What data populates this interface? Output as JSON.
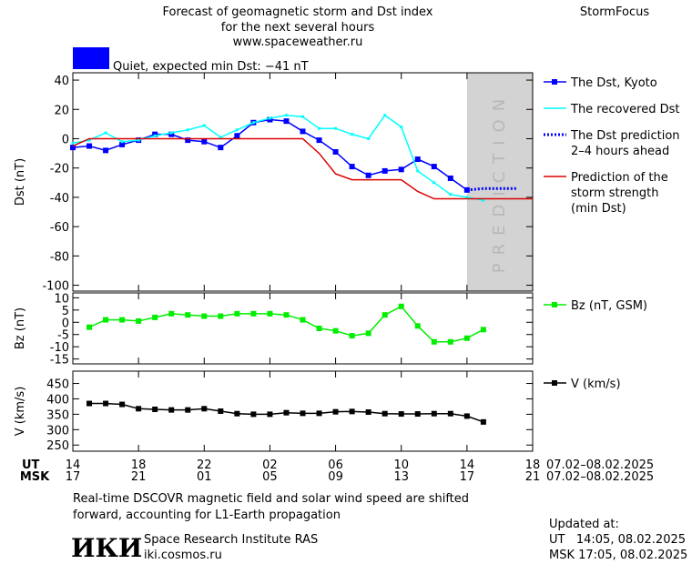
{
  "header": {
    "title_lines": [
      "Forecast of geomagnetic storm and Dst index",
      "for the next several hours",
      "www.spaceweather.ru"
    ],
    "brand": "StormFocus",
    "status": {
      "text": "Quiet, expected min Dst: −41 nT",
      "color": "#0000ff"
    }
  },
  "chart_data": [
    {
      "type": "line",
      "ylabel": "Dst (nT)",
      "ylim": [
        -104,
        45
      ],
      "yticks": [
        40,
        20,
        0,
        -20,
        -40,
        -60,
        -80,
        -100
      ],
      "xlim": [
        0,
        28
      ],
      "band": {
        "label": "PREDICTION",
        "x": [
          24,
          28
        ],
        "color": "#d3d3d3"
      },
      "series": [
        {
          "name": [
            "The Dst, Kyoto"
          ],
          "color": "#0000ff",
          "marker": "square",
          "x": [
            0,
            1,
            2,
            3,
            4,
            5,
            6,
            7,
            8,
            9,
            10,
            11,
            12,
            13,
            14,
            15,
            16,
            17,
            18,
            19,
            20,
            21,
            22,
            23,
            24
          ],
          "values": [
            -6,
            -5,
            -8,
            -4,
            -1,
            3,
            3,
            -1,
            -2,
            -6,
            2,
            11,
            13,
            12,
            5,
            -1,
            -9,
            -19,
            -25,
            -22,
            -21,
            -14,
            -19,
            -27,
            -35
          ]
        },
        {
          "name": [
            "The recovered Dst"
          ],
          "color": "#00ffff",
          "marker": "dot",
          "x": [
            0,
            1,
            2,
            3,
            4,
            5,
            6,
            7,
            8,
            9,
            10,
            11,
            12,
            13,
            14,
            15,
            16,
            17,
            18,
            19,
            20,
            21,
            22,
            23,
            24,
            25
          ],
          "values": [
            -3,
            -1,
            4,
            -2,
            -1,
            2,
            4,
            6,
            9,
            1,
            6,
            11,
            14,
            16,
            15,
            7,
            7,
            3,
            0,
            16,
            8,
            -22,
            -30,
            -38,
            -40,
            -42
          ]
        },
        {
          "name": [
            "The Dst prediction",
            "2–4 hours ahead"
          ],
          "color": "#0000ff",
          "style": "dotted",
          "x": [
            24,
            25,
            26,
            27
          ],
          "values": [
            -35,
            -34,
            -34,
            -34
          ]
        },
        {
          "name": [
            "Prediction of the",
            "storm strength",
            "(min Dst)"
          ],
          "color": "#dd0000",
          "x": [
            0,
            1,
            14,
            15,
            16,
            17,
            20,
            21,
            22,
            28
          ],
          "values": [
            -5,
            0,
            0,
            -10,
            -24,
            -28,
            -28,
            -36,
            -41,
            -41
          ]
        }
      ]
    },
    {
      "type": "line",
      "ylabel": "Bz (nT)",
      "ylim": [
        -17,
        12
      ],
      "yticks": [
        10,
        5,
        0,
        -5,
        -10,
        -15
      ],
      "xlim": [
        0,
        28
      ],
      "series": [
        {
          "name": [
            "Bz (nT, GSM)"
          ],
          "color": "#00ee00",
          "marker": "square",
          "x": [
            1,
            2,
            3,
            4,
            5,
            6,
            7,
            8,
            9,
            10,
            11,
            12,
            13,
            14,
            15,
            16,
            17,
            18,
            19,
            20,
            21,
            22,
            23,
            24,
            25
          ],
          "values": [
            -2,
            1,
            1,
            0.5,
            2,
            3.5,
            3,
            2.5,
            2.5,
            3.5,
            3.5,
            3.5,
            3,
            1,
            -2.5,
            -3.5,
            -5.5,
            -4.5,
            3,
            6.5,
            -1.5,
            -8,
            -8,
            -6.5,
            -3
          ]
        }
      ]
    },
    {
      "type": "line",
      "ylabel": "V (km/s)",
      "ylim": [
        230,
        490
      ],
      "yticks": [
        450,
        400,
        350,
        300,
        250
      ],
      "xlim": [
        0,
        28
      ],
      "xticks": [
        {
          "value": 0,
          "label": "14"
        },
        {
          "value": 4,
          "label": "18"
        },
        {
          "value": 8,
          "label": "22"
        },
        {
          "value": 12,
          "label": "02"
        },
        {
          "value": 16,
          "label": "06"
        },
        {
          "value": 20,
          "label": "10"
        },
        {
          "value": 24,
          "label": "14"
        },
        {
          "value": 28,
          "label": "18"
        }
      ],
      "xticks2": [
        {
          "value": 0,
          "label": "17"
        },
        {
          "value": 4,
          "label": "21"
        },
        {
          "value": 8,
          "label": "01"
        },
        {
          "value": 12,
          "label": "05"
        },
        {
          "value": 16,
          "label": "09"
        },
        {
          "value": 20,
          "label": "13"
        },
        {
          "value": 24,
          "label": "17"
        },
        {
          "value": 28,
          "label": "21"
        }
      ],
      "xlabel": "UT",
      "x2label": "MSK",
      "date_range": "07.02–08.02.2025",
      "date_range2": "07.02–08.02.2025",
      "series": [
        {
          "name": [
            "V (km/s)"
          ],
          "color": "#000000",
          "marker": "square",
          "x": [
            1,
            2,
            3,
            4,
            5,
            6,
            7,
            8,
            9,
            10,
            11,
            12,
            13,
            14,
            15,
            16,
            17,
            18,
            19,
            20,
            21,
            22,
            23,
            24,
            25
          ],
          "values": [
            385,
            385,
            382,
            368,
            366,
            364,
            364,
            368,
            360,
            352,
            350,
            350,
            355,
            353,
            353,
            358,
            359,
            357,
            352,
            351,
            351,
            352,
            352,
            344,
            325
          ]
        }
      ]
    }
  ],
  "footer": {
    "note_lines": [
      "Real-time DSCOVR magnetic field and solar wind speed are shifted",
      "forward, accounting for L1-Earth propagation"
    ],
    "logo": "ИКИ",
    "institute": "Space Research Institute RAS",
    "url": "iki.cosmos.ru",
    "updated_title": "Updated at:",
    "updated_ut": "UT   14:05, 08.02.2025",
    "updated_msk": "MSK 17:05, 08.02.2025"
  }
}
